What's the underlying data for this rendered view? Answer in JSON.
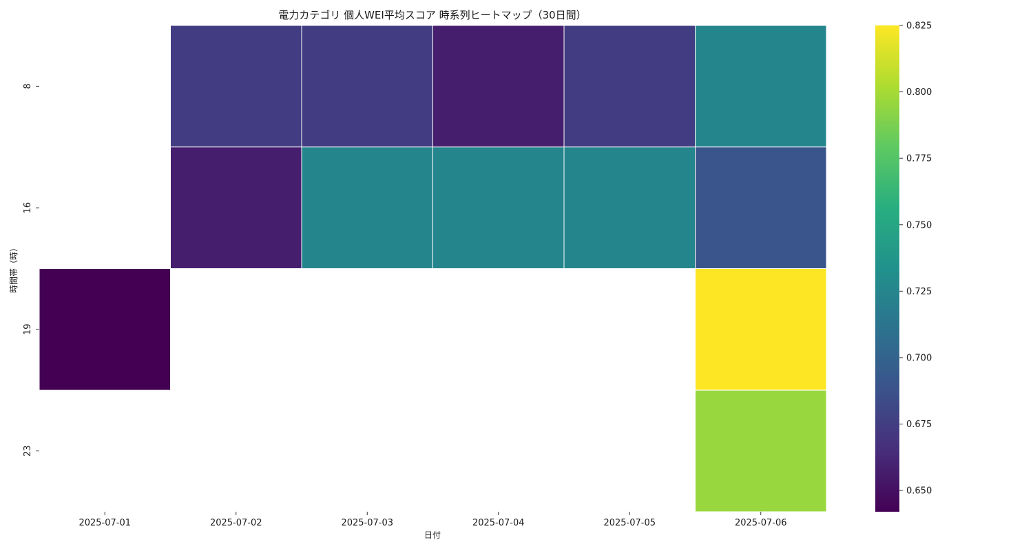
{
  "chart_data": {
    "type": "heatmap",
    "title": "電力カテゴリ 個人WEI平均スコア 時系列ヒートマップ（30日間）",
    "xlabel": "日付",
    "ylabel": "時間帯（時）",
    "x_categories": [
      "2025-07-01",
      "2025-07-02",
      "2025-07-03",
      "2025-07-04",
      "2025-07-05",
      "2025-07-06"
    ],
    "y_categories": [
      "8",
      "16",
      "19",
      "23"
    ],
    "values": [
      [
        null,
        0.675,
        0.675,
        0.657,
        0.675,
        0.725
      ],
      [
        null,
        0.657,
        0.725,
        0.725,
        0.725,
        0.69
      ],
      [
        0.642,
        null,
        null,
        null,
        null,
        0.825
      ],
      [
        null,
        null,
        null,
        null,
        null,
        0.796
      ]
    ],
    "colormap": "viridis",
    "vmin": 0.642,
    "vmax": 0.825,
    "colorbar_ticks": [
      "0.650",
      "0.675",
      "0.700",
      "0.725",
      "0.750",
      "0.775",
      "0.800",
      "0.825"
    ],
    "colorbar_tick_values": [
      0.65,
      0.675,
      0.7,
      0.725,
      0.75,
      0.775,
      0.8,
      0.825
    ],
    "grid": false,
    "cell_separator_color": "#ffffff"
  }
}
